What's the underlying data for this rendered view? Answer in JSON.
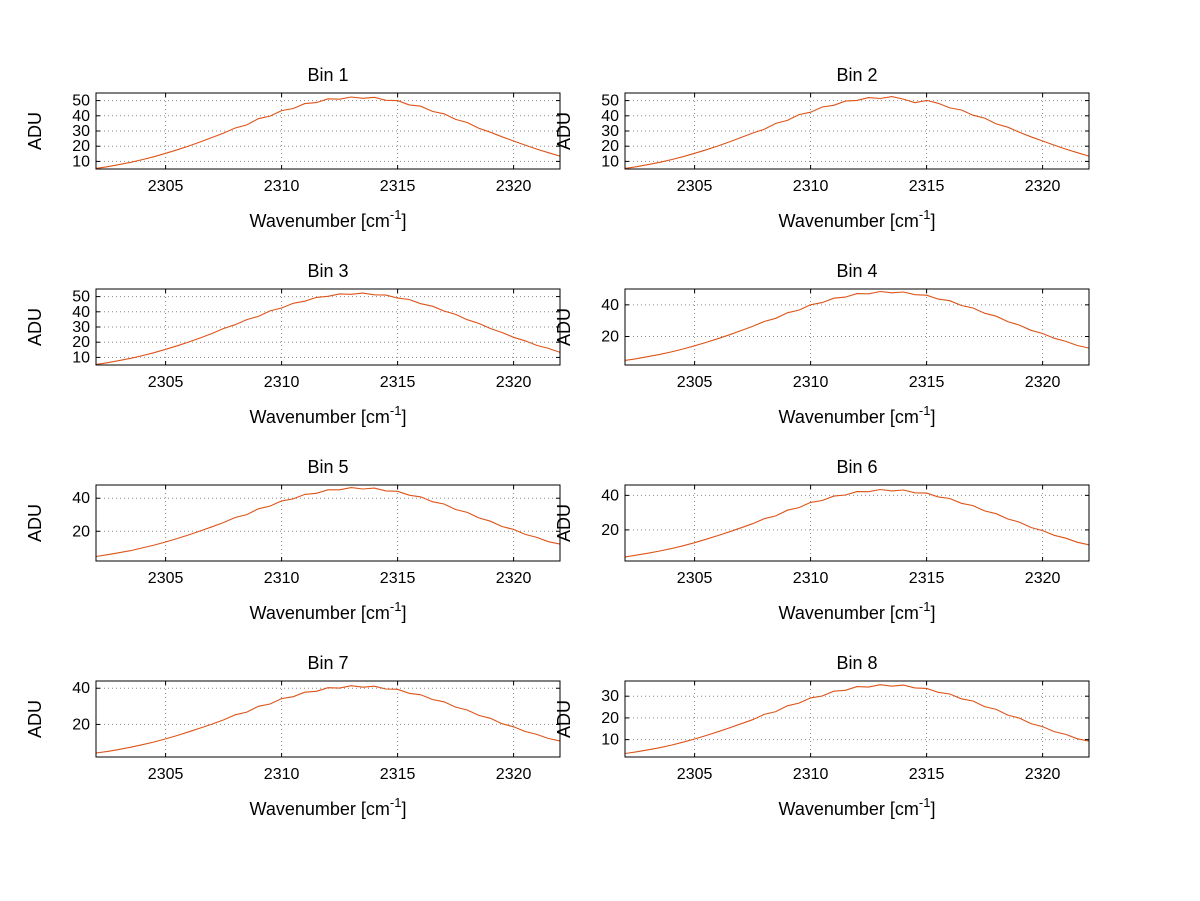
{
  "figure": {
    "background": "#ffffff",
    "axis_color": "#000000",
    "grid_color": "#8a8a8a",
    "line_color": "#dd5418",
    "ylabel": "ADU",
    "xlabel": "Wavenumber [cm^-1]",
    "xlabel_parts": {
      "base": "Wavenumber [cm",
      "sup": "-1",
      "end": "]"
    }
  },
  "chart_data": {
    "type": "line",
    "title": "",
    "xlabel": "Wavenumber [cm^-1]",
    "ylabel": "ADU",
    "grid": true,
    "legend_position": "none",
    "xlim": [
      2302,
      2322
    ],
    "xticks": [
      2305,
      2310,
      2315,
      2320
    ],
    "x": [
      2302,
      2302.5,
      2303,
      2303.5,
      2304,
      2304.5,
      2305,
      2305.5,
      2306,
      2306.5,
      2307,
      2307.5,
      2308,
      2308.5,
      2309,
      2309.5,
      2310,
      2310.5,
      2311,
      2311.5,
      2312,
      2312.5,
      2313,
      2313.5,
      2314,
      2314.5,
      2315,
      2315.5,
      2316,
      2316.5,
      2317,
      2317.5,
      2318,
      2318.5,
      2319,
      2319.5,
      2320,
      2320.5,
      2321,
      2321.5,
      2322
    ],
    "series": [
      {
        "name": "Bin 1",
        "ylim": [
          5,
          55
        ],
        "yticks": [
          10,
          20,
          30,
          40,
          50
        ],
        "values": [
          5.4,
          6.5,
          7.9,
          9.4,
          11.2,
          13.1,
          15.3,
          17.6,
          20.1,
          22.8,
          25.7,
          28.6,
          32.0,
          34.0,
          38.1,
          39.8,
          43.4,
          44.8,
          48.0,
          48.7,
          51.2,
          50.9,
          52.4,
          51.5,
          52.2,
          50.2,
          50.0,
          47.2,
          46.3,
          42.9,
          41.3,
          37.6,
          35.6,
          31.8,
          29.2,
          26.2,
          23.4,
          20.7,
          18.1,
          15.7,
          13.5
        ]
      },
      {
        "name": "Bin 2",
        "ylim": [
          5,
          55
        ],
        "yticks": [
          10,
          20,
          30,
          40,
          50
        ],
        "values": [
          5.4,
          6.5,
          7.9,
          9.4,
          11.2,
          13.1,
          15.3,
          17.6,
          20.1,
          22.8,
          25.7,
          28.6,
          31.1,
          35.0,
          37.0,
          40.8,
          42.4,
          45.8,
          46.9,
          49.7,
          50.1,
          52.0,
          51.4,
          52.6,
          51.0,
          48.6,
          50.1,
          48.2,
          45.2,
          43.8,
          40.4,
          38.5,
          34.7,
          32.5,
          29.2,
          26.2,
          23.4,
          20.7,
          18.1,
          15.7,
          13.5
        ]
      },
      {
        "name": "Bin 3",
        "ylim": [
          5,
          55
        ],
        "yticks": [
          10,
          20,
          30,
          40,
          50
        ],
        "values": [
          5.4,
          6.5,
          7.9,
          9.4,
          11.2,
          13.1,
          15.3,
          17.6,
          20.1,
          22.8,
          25.7,
          29.0,
          31.5,
          34.9,
          37.0,
          40.6,
          42.5,
          45.6,
          47.0,
          49.5,
          50.2,
          51.8,
          51.5,
          52.3,
          51.2,
          51.0,
          49.0,
          48.1,
          45.3,
          43.7,
          40.5,
          38.3,
          34.8,
          32.4,
          29.0,
          26.4,
          23.2,
          20.9,
          17.9,
          15.9,
          13.3
        ]
      },
      {
        "name": "Bin 4",
        "ylim": [
          2,
          50
        ],
        "yticks": [
          20,
          40
        ],
        "values": [
          4.9,
          6.0,
          7.3,
          8.7,
          10.3,
          12.1,
          14.1,
          16.3,
          18.6,
          21.1,
          23.7,
          26.4,
          29.5,
          31.5,
          35.0,
          36.7,
          40.0,
          41.4,
          44.2,
          44.9,
          47.1,
          47.0,
          48.4,
          47.6,
          48.1,
          46.4,
          46.1,
          43.6,
          42.6,
          39.6,
          38.0,
          34.7,
          32.8,
          29.4,
          27.2,
          23.9,
          21.9,
          18.9,
          16.9,
          14.3,
          12.7
        ]
      },
      {
        "name": "Bin 5",
        "ylim": [
          2,
          48
        ],
        "yticks": [
          20,
          40
        ],
        "values": [
          4.7,
          5.8,
          7.0,
          8.3,
          9.9,
          11.6,
          13.5,
          15.6,
          17.8,
          20.2,
          22.7,
          25.3,
          28.3,
          30.1,
          33.6,
          35.2,
          38.4,
          39.6,
          42.3,
          43.0,
          45.1,
          45.1,
          46.4,
          45.6,
          46.1,
          44.4,
          44.2,
          41.8,
          40.8,
          37.9,
          36.5,
          33.2,
          31.4,
          28.1,
          26.1,
          22.9,
          21.1,
          18.1,
          16.3,
          13.7,
          12.2
        ]
      },
      {
        "name": "Bin 6",
        "ylim": [
          2,
          46
        ],
        "yticks": [
          20,
          40
        ],
        "values": [
          4.4,
          5.4,
          6.5,
          7.8,
          9.2,
          10.8,
          12.6,
          14.6,
          16.7,
          18.9,
          21.2,
          23.6,
          26.5,
          28.1,
          31.4,
          32.9,
          35.9,
          37.0,
          39.6,
          40.2,
          42.2,
          42.1,
          43.4,
          42.6,
          43.1,
          41.5,
          41.3,
          39.1,
          38.2,
          35.4,
          34.1,
          31.0,
          29.4,
          26.3,
          24.5,
          21.4,
          19.6,
          16.9,
          15.2,
          12.8,
          11.4
        ]
      },
      {
        "name": "Bin 7",
        "ylim": [
          2,
          44
        ],
        "yticks": [
          20,
          40
        ],
        "values": [
          4.2,
          5.1,
          6.2,
          7.4,
          8.8,
          10.3,
          12.0,
          13.9,
          15.9,
          18.0,
          20.2,
          22.5,
          25.3,
          26.8,
          30.0,
          31.3,
          34.3,
          35.3,
          37.8,
          38.3,
          40.3,
          40.1,
          41.4,
          40.6,
          41.1,
          39.6,
          39.4,
          37.2,
          36.4,
          33.8,
          32.5,
          29.6,
          28.0,
          25.0,
          23.4,
          20.4,
          18.7,
          16.1,
          14.5,
          12.2,
          10.9
        ]
      },
      {
        "name": "Bin 8",
        "ylim": [
          2,
          37
        ],
        "yticks": [
          10,
          20,
          30
        ],
        "values": [
          3.6,
          4.4,
          5.3,
          6.3,
          7.5,
          8.8,
          10.3,
          11.9,
          13.6,
          15.4,
          17.3,
          19.2,
          21.6,
          22.9,
          25.6,
          26.8,
          29.2,
          30.1,
          32.3,
          32.7,
          34.4,
          34.2,
          35.3,
          34.6,
          35.1,
          33.8,
          33.6,
          31.8,
          31.0,
          28.8,
          27.8,
          25.2,
          23.9,
          21.3,
          19.9,
          17.4,
          16.0,
          13.7,
          12.4,
          10.4,
          9.3
        ]
      }
    ]
  }
}
